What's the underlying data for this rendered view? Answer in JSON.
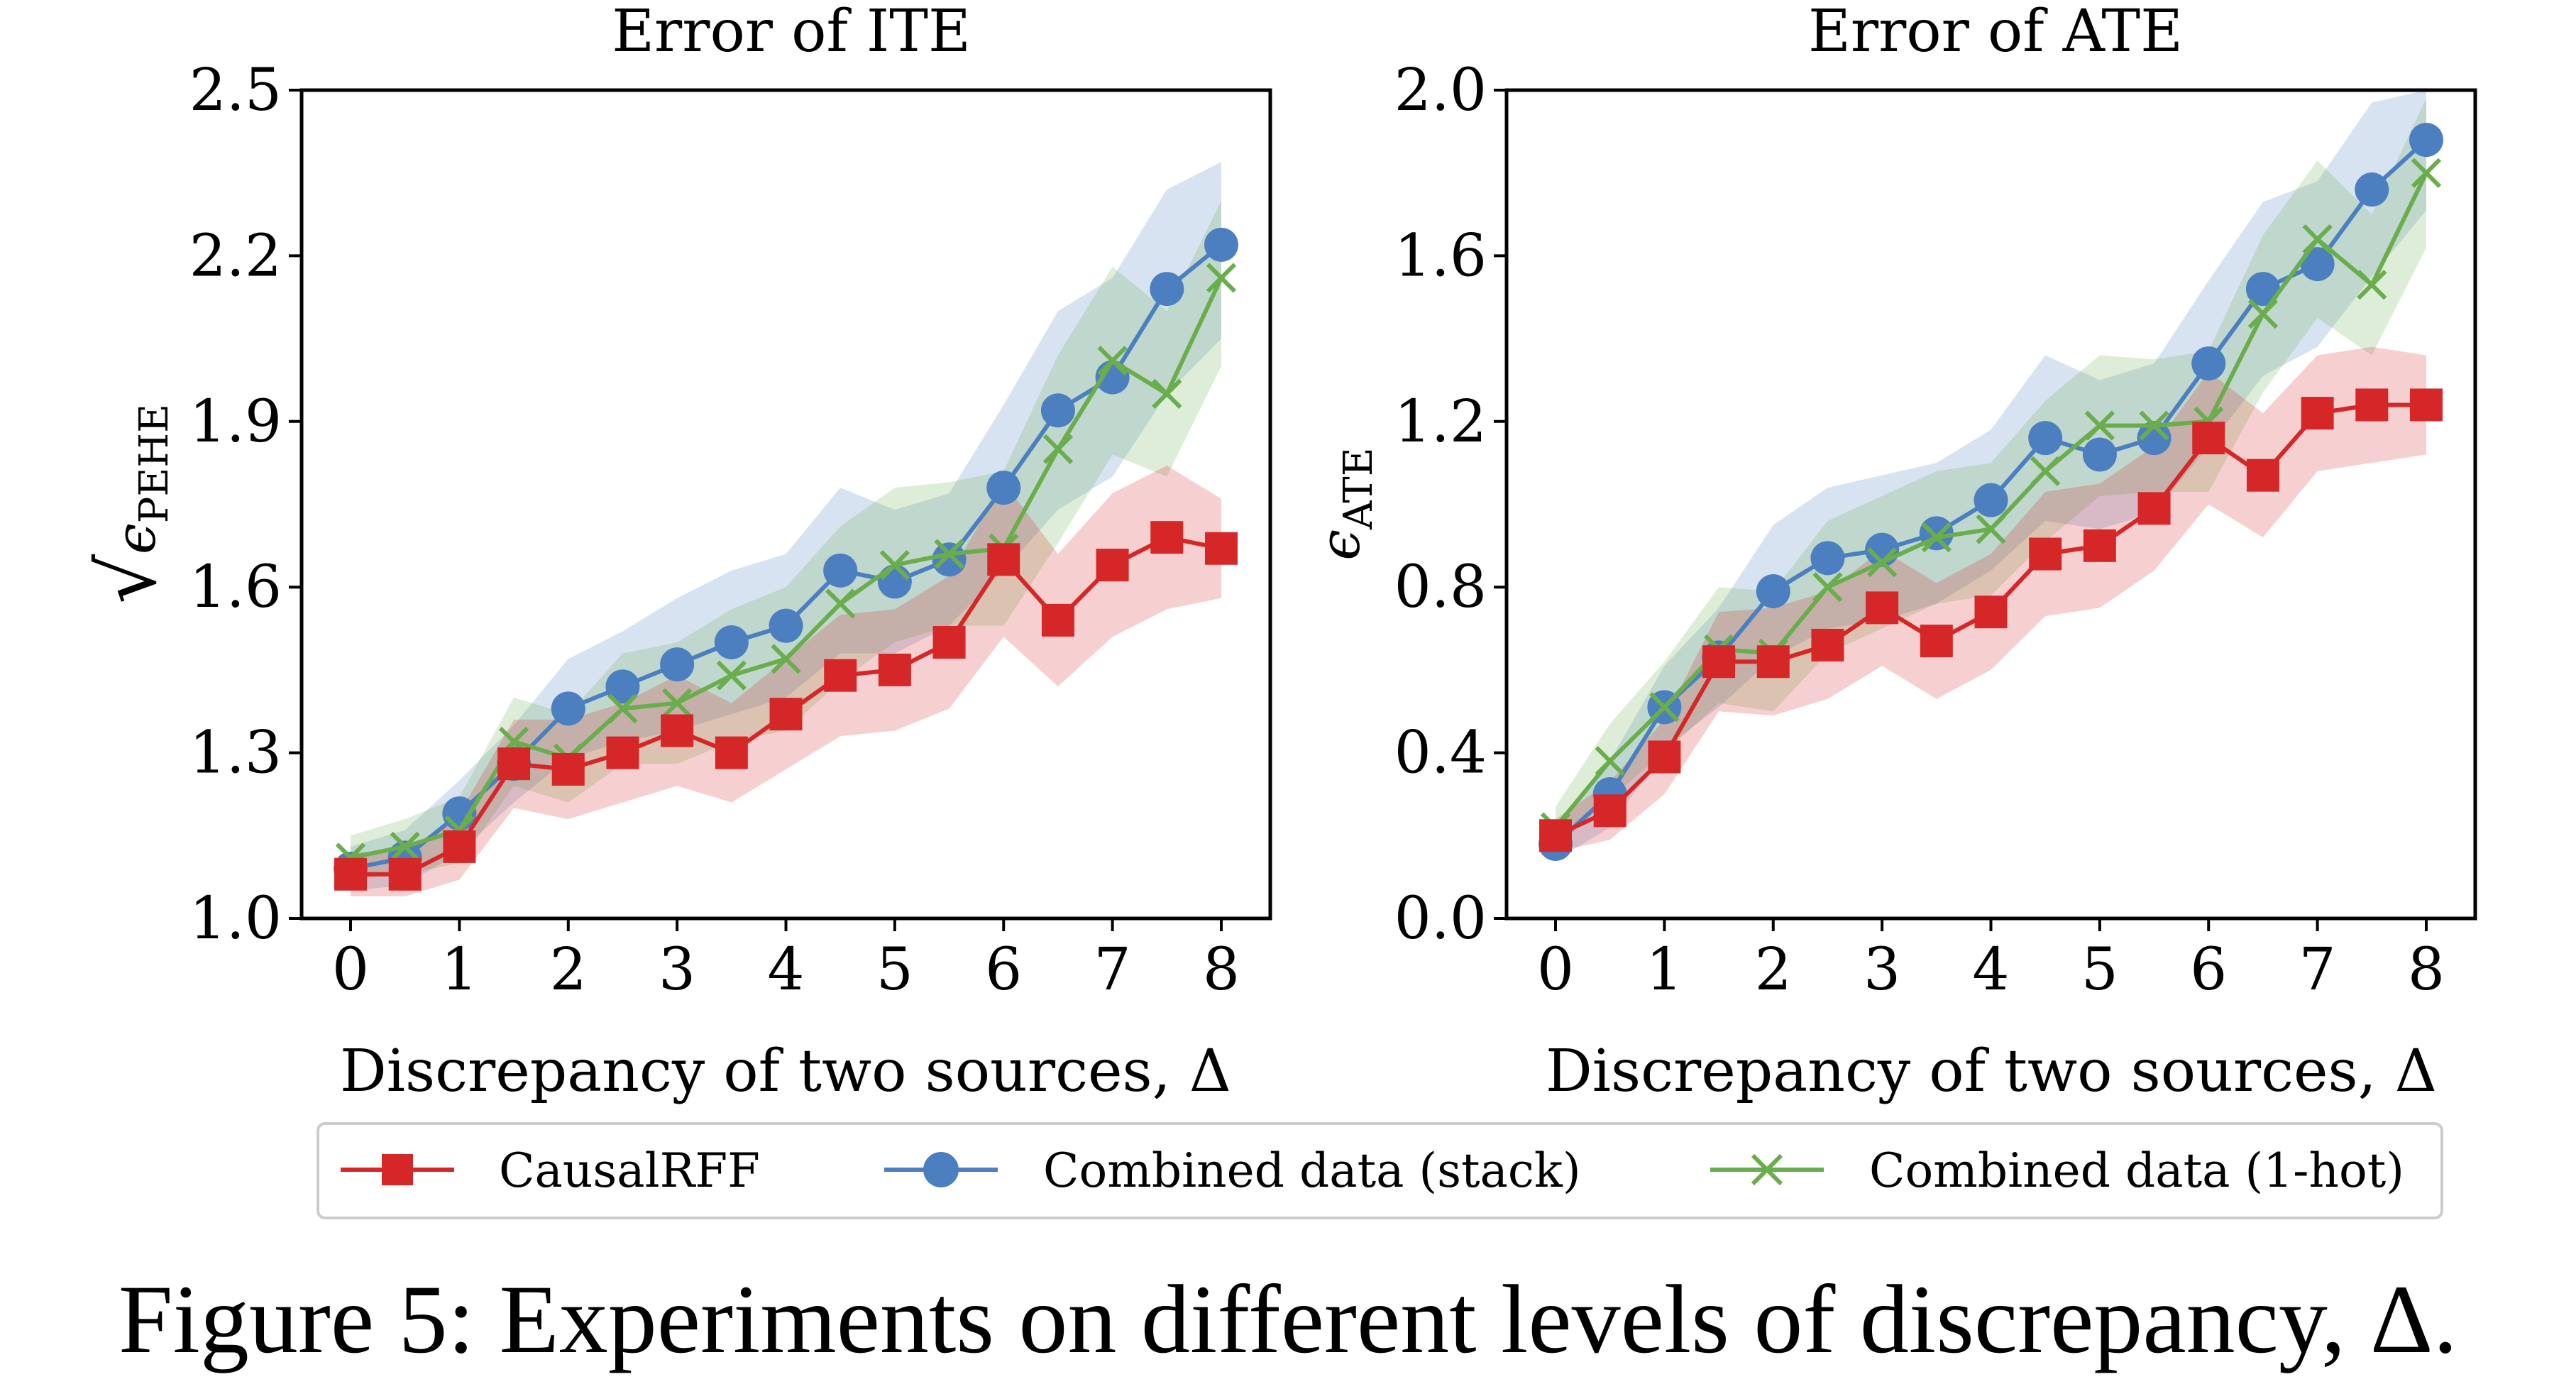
{
  "caption": "Figure 5: Experiments on different levels of discrepancy, Δ.",
  "legend": {
    "entries": [
      "CausalRFF",
      "Combined data (stack)",
      "Combined data (1-hot)"
    ],
    "colors": [
      "#d62728",
      "#4c7fc0",
      "#6aad4c"
    ],
    "markers": [
      "square",
      "circle",
      "x"
    ]
  },
  "chart_data": [
    {
      "type": "line",
      "title": "Error of ITE",
      "xlabel": "Discrepancy of two sources, Δ",
      "ylabel_sqrt": "√",
      "ylabel_eps": "ϵ",
      "ylabel_sub": "PEHE",
      "xlim": [
        -0.45,
        8.45
      ],
      "ylim": [
        1.0,
        2.5
      ],
      "xticks": [
        0,
        1,
        2,
        3,
        4,
        5,
        6,
        7,
        8
      ],
      "xtick_labels": [
        "0",
        "1",
        "2",
        "3",
        "4",
        "5",
        "6",
        "7",
        "8"
      ],
      "yticks": [
        1.0,
        1.3,
        1.6,
        1.9,
        2.2,
        2.5
      ],
      "ytick_labels": [
        "1.0",
        "1.3",
        "1.6",
        "1.9",
        "2.2",
        "2.5"
      ],
      "x": [
        0,
        0.5,
        1,
        1.5,
        2,
        2.5,
        3,
        3.5,
        4,
        4.5,
        5,
        5.5,
        6,
        6.5,
        7,
        7.5,
        8
      ],
      "series": [
        {
          "name": "Combined data (stack)",
          "color": "#4c7fc0",
          "marker": "circle",
          "values": [
            1.09,
            1.11,
            1.19,
            1.28,
            1.38,
            1.42,
            1.46,
            1.5,
            1.53,
            1.63,
            1.61,
            1.65,
            1.78,
            1.92,
            1.98,
            2.14,
            2.22
          ],
          "lower": [
            1.05,
            1.06,
            1.12,
            1.21,
            1.29,
            1.32,
            1.34,
            1.37,
            1.4,
            1.48,
            1.48,
            1.53,
            1.63,
            1.74,
            1.8,
            1.95,
            2.05
          ],
          "upper": [
            1.13,
            1.16,
            1.25,
            1.35,
            1.47,
            1.52,
            1.58,
            1.63,
            1.66,
            1.78,
            1.74,
            1.77,
            1.93,
            2.1,
            2.16,
            2.32,
            2.37
          ]
        },
        {
          "name": "Combined data (1-hot)",
          "color": "#6aad4c",
          "marker": "x",
          "values": [
            1.11,
            1.13,
            1.16,
            1.32,
            1.29,
            1.38,
            1.39,
            1.44,
            1.47,
            1.57,
            1.64,
            1.66,
            1.67,
            1.85,
            2.01,
            1.95,
            2.16
          ],
          "lower": [
            1.07,
            1.08,
            1.1,
            1.24,
            1.21,
            1.28,
            1.28,
            1.32,
            1.34,
            1.43,
            1.5,
            1.53,
            1.53,
            1.68,
            1.84,
            1.8,
            2.0
          ],
          "upper": [
            1.15,
            1.18,
            1.22,
            1.4,
            1.37,
            1.48,
            1.5,
            1.56,
            1.6,
            1.71,
            1.78,
            1.79,
            1.81,
            2.02,
            2.18,
            2.1,
            2.3
          ]
        },
        {
          "name": "CausalRFF",
          "color": "#d62728",
          "marker": "square",
          "values": [
            1.08,
            1.08,
            1.13,
            1.28,
            1.27,
            1.3,
            1.34,
            1.3,
            1.37,
            1.44,
            1.45,
            1.5,
            1.65,
            1.54,
            1.64,
            1.69,
            1.67
          ],
          "lower": [
            1.04,
            1.04,
            1.07,
            1.2,
            1.18,
            1.21,
            1.24,
            1.21,
            1.27,
            1.33,
            1.34,
            1.38,
            1.51,
            1.42,
            1.51,
            1.56,
            1.58
          ],
          "upper": [
            1.12,
            1.12,
            1.19,
            1.36,
            1.36,
            1.39,
            1.44,
            1.39,
            1.47,
            1.55,
            1.56,
            1.62,
            1.79,
            1.66,
            1.77,
            1.82,
            1.76
          ]
        }
      ]
    },
    {
      "type": "line",
      "title": "Error of ATE",
      "xlabel": "Discrepancy of two sources, Δ",
      "ylabel_eps": "ϵ",
      "ylabel_sub": "ATE",
      "xlim": [
        -0.45,
        8.45
      ],
      "ylim": [
        0.0,
        2.0
      ],
      "xticks": [
        0,
        1,
        2,
        3,
        4,
        5,
        6,
        7,
        8
      ],
      "xtick_labels": [
        "0",
        "1",
        "2",
        "3",
        "4",
        "5",
        "6",
        "7",
        "8"
      ],
      "yticks": [
        0.0,
        0.4,
        0.8,
        1.2,
        1.6,
        2.0
      ],
      "ytick_labels": [
        "0.0",
        "0.4",
        "0.8",
        "1.2",
        "1.6",
        "2.0"
      ],
      "x": [
        0,
        0.5,
        1,
        1.5,
        2,
        2.5,
        3,
        3.5,
        4,
        4.5,
        5,
        5.5,
        6,
        6.5,
        7,
        7.5,
        8
      ],
      "series": [
        {
          "name": "Combined data (stack)",
          "color": "#4c7fc0",
          "marker": "circle",
          "values": [
            0.18,
            0.3,
            0.51,
            0.63,
            0.79,
            0.87,
            0.89,
            0.93,
            1.01,
            1.16,
            1.12,
            1.16,
            1.34,
            1.52,
            1.58,
            1.76,
            1.88
          ],
          "lower": [
            0.14,
            0.22,
            0.41,
            0.51,
            0.63,
            0.7,
            0.72,
            0.76,
            0.84,
            0.96,
            0.94,
            0.98,
            1.14,
            1.31,
            1.38,
            1.55,
            1.71
          ],
          "upper": [
            0.22,
            0.38,
            0.61,
            0.75,
            0.95,
            1.04,
            1.07,
            1.1,
            1.18,
            1.36,
            1.3,
            1.34,
            1.54,
            1.73,
            1.78,
            1.97,
            2.0
          ]
        },
        {
          "name": "Combined data (1-hot)",
          "color": "#6aad4c",
          "marker": "x",
          "values": [
            0.22,
            0.38,
            0.51,
            0.65,
            0.64,
            0.8,
            0.86,
            0.92,
            0.94,
            1.08,
            1.19,
            1.19,
            1.2,
            1.46,
            1.64,
            1.53,
            1.8
          ],
          "lower": [
            0.17,
            0.29,
            0.4,
            0.52,
            0.5,
            0.64,
            0.7,
            0.76,
            0.78,
            0.91,
            1.02,
            1.03,
            1.03,
            1.27,
            1.45,
            1.36,
            1.62
          ],
          "upper": [
            0.27,
            0.47,
            0.62,
            0.8,
            0.79,
            0.96,
            1.02,
            1.08,
            1.1,
            1.25,
            1.36,
            1.35,
            1.37,
            1.65,
            1.83,
            1.7,
            1.98
          ]
        },
        {
          "name": "CausalRFF",
          "color": "#d62728",
          "marker": "square",
          "values": [
            0.2,
            0.26,
            0.39,
            0.62,
            0.62,
            0.66,
            0.75,
            0.67,
            0.74,
            0.88,
            0.9,
            0.99,
            1.16,
            1.07,
            1.22,
            1.24,
            1.24
          ],
          "lower": [
            0.16,
            0.19,
            0.3,
            0.5,
            0.49,
            0.53,
            0.61,
            0.53,
            0.6,
            0.73,
            0.75,
            0.84,
            1.0,
            0.92,
            1.08,
            1.1,
            1.12
          ],
          "upper": [
            0.24,
            0.33,
            0.48,
            0.74,
            0.75,
            0.79,
            0.89,
            0.81,
            0.88,
            1.03,
            1.05,
            1.14,
            1.32,
            1.22,
            1.36,
            1.38,
            1.36
          ]
        }
      ]
    }
  ]
}
